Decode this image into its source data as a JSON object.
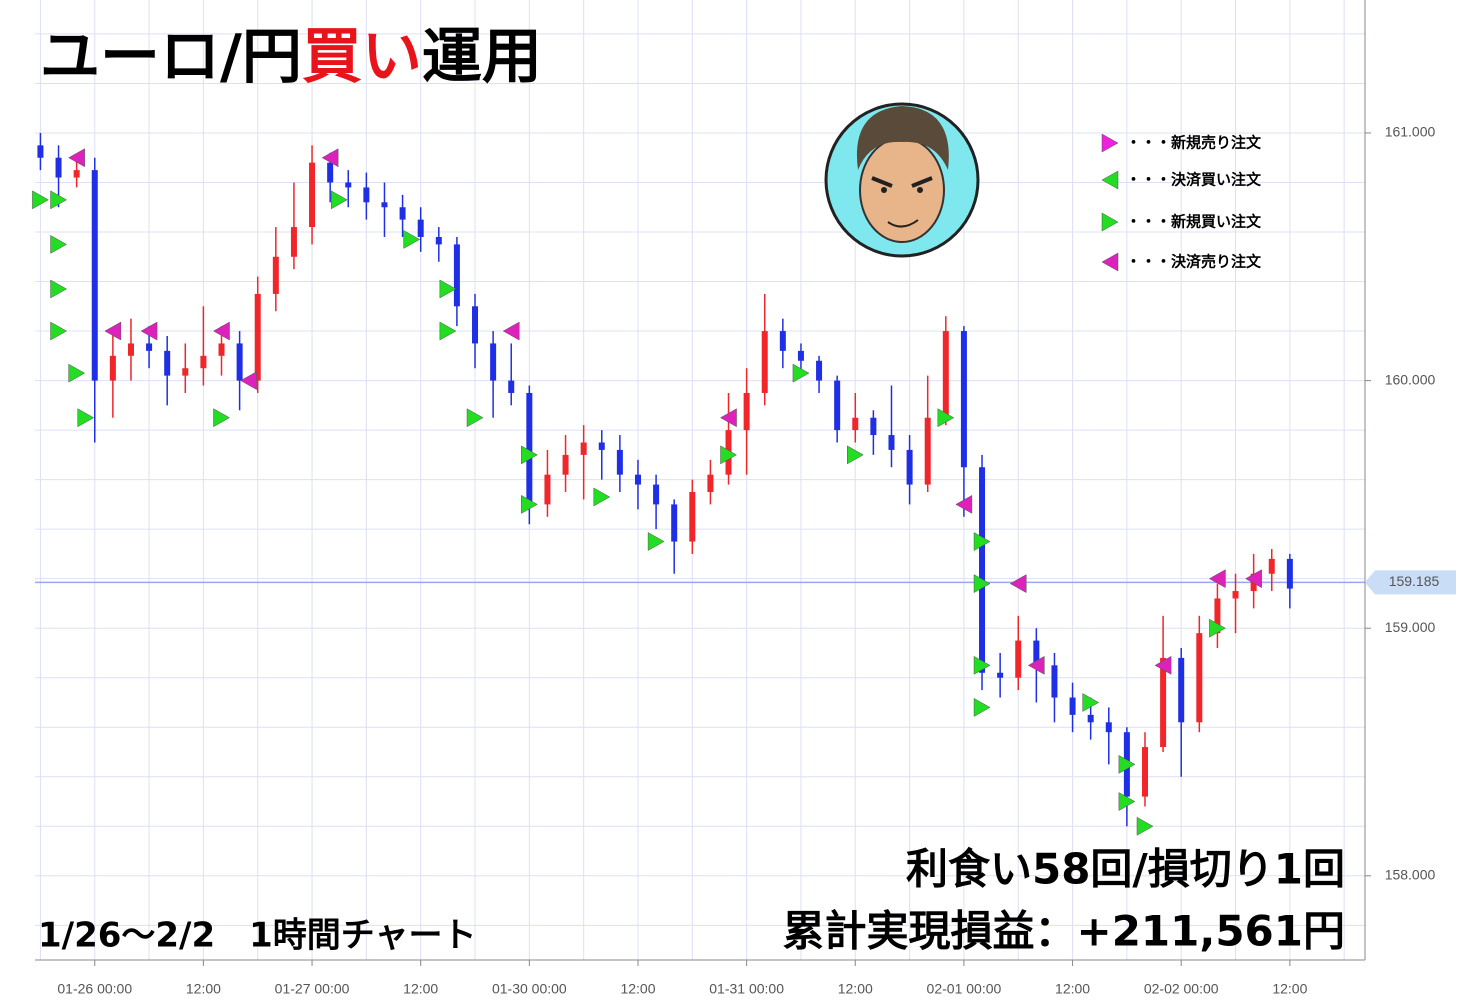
{
  "chart_data": {
    "type": "candlestick",
    "title": {
      "parts": [
        "ユーロ/円",
        "買い",
        "運用"
      ],
      "colors": [
        "#000000",
        "#e8141b",
        "#000000"
      ]
    },
    "period_label": "1/26〜2/2　1時間チャート",
    "summary": [
      "利食い58回/損切り1回",
      "累計実現損益：+211,561円"
    ],
    "up_color": "#f0262b",
    "down_color": "#1f2fe6",
    "x": [
      -6,
      -4,
      -2,
      0,
      2,
      4,
      6,
      8,
      10,
      12,
      14,
      16,
      18,
      20,
      22,
      24,
      26,
      28,
      30,
      32,
      34,
      36,
      38,
      40,
      42,
      44,
      46,
      48,
      50,
      52,
      54,
      56,
      58,
      60,
      62,
      64,
      66,
      68,
      70,
      72,
      74,
      76,
      78,
      80,
      82,
      84,
      86,
      88,
      90,
      92,
      94,
      96,
      98,
      100,
      102,
      104,
      106,
      108,
      110,
      112,
      114,
      116,
      118,
      120,
      122,
      124,
      126,
      128,
      130,
      132
    ],
    "open": [
      160.95,
      160.9,
      160.82,
      160.85,
      160.0,
      160.1,
      160.15,
      160.12,
      160.02,
      160.05,
      160.1,
      160.15,
      160.0,
      160.35,
      160.5,
      160.62,
      160.88,
      160.8,
      160.78,
      160.72,
      160.7,
      160.65,
      160.58,
      160.55,
      160.3,
      160.15,
      160.0,
      159.95,
      159.5,
      159.62,
      159.7,
      159.75,
      159.72,
      159.62,
      159.58,
      159.5,
      159.35,
      159.55,
      159.62,
      159.8,
      159.95,
      160.2,
      160.12,
      160.08,
      160.0,
      159.8,
      159.85,
      159.78,
      159.72,
      159.58,
      159.85,
      160.2,
      159.65,
      158.82,
      158.8,
      158.95,
      158.85,
      158.72,
      158.65,
      158.62,
      158.58,
      158.32,
      158.52,
      158.88,
      158.62,
      158.98,
      159.12,
      159.15,
      159.22,
      159.28
    ],
    "high": [
      161.0,
      160.95,
      160.9,
      160.9,
      160.2,
      160.25,
      160.22,
      160.18,
      160.15,
      160.3,
      160.22,
      160.2,
      160.42,
      160.62,
      160.8,
      160.95,
      160.92,
      160.85,
      160.84,
      160.8,
      160.75,
      160.7,
      160.62,
      160.58,
      160.35,
      160.2,
      160.15,
      159.98,
      159.72,
      159.78,
      159.82,
      159.8,
      159.78,
      159.68,
      159.62,
      159.52,
      159.6,
      159.68,
      159.95,
      160.05,
      160.35,
      160.25,
      160.15,
      160.1,
      160.02,
      159.95,
      159.88,
      159.98,
      159.78,
      160.02,
      160.26,
      160.22,
      159.7,
      158.9,
      159.05,
      159.0,
      158.9,
      158.78,
      158.72,
      158.68,
      158.6,
      158.58,
      159.05,
      158.92,
      159.05,
      159.18,
      159.22,
      159.3,
      159.32,
      159.3
    ],
    "low": [
      160.85,
      160.7,
      160.78,
      159.75,
      159.85,
      160.0,
      160.05,
      159.9,
      159.95,
      159.98,
      160.02,
      159.88,
      159.95,
      160.28,
      160.45,
      160.55,
      160.72,
      160.7,
      160.65,
      160.58,
      160.58,
      160.52,
      160.48,
      160.22,
      160.05,
      159.85,
      159.9,
      159.42,
      159.45,
      159.55,
      159.52,
      159.6,
      159.55,
      159.48,
      159.4,
      159.22,
      159.3,
      159.5,
      159.58,
      159.62,
      159.9,
      160.05,
      160.02,
      159.95,
      159.75,
      159.75,
      159.7,
      159.65,
      159.5,
      159.55,
      159.82,
      159.45,
      158.75,
      158.72,
      158.75,
      158.7,
      158.62,
      158.58,
      158.55,
      158.45,
      158.2,
      158.28,
      158.5,
      158.4,
      158.58,
      158.92,
      158.98,
      159.08,
      159.15,
      159.08
    ],
    "close": [
      160.9,
      160.82,
      160.85,
      160.0,
      160.1,
      160.15,
      160.12,
      160.02,
      160.05,
      160.1,
      160.15,
      160.0,
      160.35,
      160.5,
      160.62,
      160.88,
      160.8,
      160.78,
      160.72,
      160.7,
      160.65,
      160.58,
      160.55,
      160.3,
      160.15,
      160.0,
      159.95,
      159.5,
      159.62,
      159.7,
      159.75,
      159.72,
      159.62,
      159.58,
      159.5,
      159.35,
      159.55,
      159.62,
      159.8,
      159.95,
      160.2,
      160.12,
      160.08,
      160.0,
      159.8,
      159.85,
      159.78,
      159.72,
      159.58,
      159.85,
      160.2,
      159.65,
      158.82,
      158.8,
      158.95,
      158.85,
      158.72,
      158.65,
      158.62,
      158.58,
      158.32,
      158.52,
      158.88,
      158.62,
      158.98,
      159.12,
      159.15,
      159.22,
      159.28,
      159.16
    ],
    "legend": [
      {
        "label": "・・・新規売り注文",
        "color": "#ee22dd",
        "direction": "right"
      },
      {
        "label": "・・・決済買い注文",
        "color": "#22dd22",
        "direction": "left"
      },
      {
        "label": "・・・新規買い注文",
        "color": "#22dd22",
        "direction": "right"
      },
      {
        "label": "・・・決済売り注文",
        "color": "#dd22bb",
        "direction": "left"
      }
    ],
    "orders": [
      {
        "x": -6,
        "price": 160.73,
        "kind": 2
      },
      {
        "x": -4,
        "price": 160.73,
        "kind": 2
      },
      {
        "x": -4,
        "price": 160.55,
        "kind": 2
      },
      {
        "x": -4,
        "price": 160.37,
        "kind": 2
      },
      {
        "x": -4,
        "price": 160.2,
        "kind": 2
      },
      {
        "x": -2,
        "price": 160.03,
        "kind": 2
      },
      {
        "x": -1,
        "price": 159.85,
        "kind": 2
      },
      {
        "x": -2,
        "price": 160.9,
        "kind": 3
      },
      {
        "x": 2,
        "price": 160.2,
        "kind": 3
      },
      {
        "x": 6,
        "price": 160.2,
        "kind": 3
      },
      {
        "x": 14,
        "price": 160.2,
        "kind": 3
      },
      {
        "x": 14,
        "price": 159.85,
        "kind": 2
      },
      {
        "x": 17,
        "price": 160.0,
        "kind": 3
      },
      {
        "x": 26,
        "price": 160.9,
        "kind": 3
      },
      {
        "x": 27,
        "price": 160.73,
        "kind": 2
      },
      {
        "x": 35,
        "price": 160.57,
        "kind": 2
      },
      {
        "x": 39,
        "price": 160.37,
        "kind": 2
      },
      {
        "x": 39,
        "price": 160.2,
        "kind": 2
      },
      {
        "x": 46,
        "price": 160.2,
        "kind": 3
      },
      {
        "x": 42,
        "price": 159.85,
        "kind": 2
      },
      {
        "x": 48,
        "price": 159.7,
        "kind": 2
      },
      {
        "x": 48,
        "price": 159.5,
        "kind": 2
      },
      {
        "x": 56,
        "price": 159.53,
        "kind": 2
      },
      {
        "x": 62,
        "price": 159.35,
        "kind": 2
      },
      {
        "x": 70,
        "price": 159.7,
        "kind": 2
      },
      {
        "x": 70,
        "price": 159.85,
        "kind": 3
      },
      {
        "x": 78,
        "price": 160.03,
        "kind": 2
      },
      {
        "x": 84,
        "price": 159.7,
        "kind": 2
      },
      {
        "x": 94,
        "price": 159.85,
        "kind": 2
      },
      {
        "x": 96,
        "price": 159.5,
        "kind": 3
      },
      {
        "x": 98,
        "price": 159.35,
        "kind": 2
      },
      {
        "x": 98,
        "price": 159.18,
        "kind": 2
      },
      {
        "x": 102,
        "price": 159.18,
        "kind": 3
      },
      {
        "x": 98,
        "price": 158.85,
        "kind": 2
      },
      {
        "x": 104,
        "price": 158.85,
        "kind": 3
      },
      {
        "x": 110,
        "price": 158.7,
        "kind": 2
      },
      {
        "x": 114,
        "price": 158.45,
        "kind": 2
      },
      {
        "x": 116,
        "price": 158.2,
        "kind": 2
      },
      {
        "x": 114,
        "price": 158.3,
        "kind": 2
      },
      {
        "x": 118,
        "price": 158.85,
        "kind": 3
      },
      {
        "x": 124,
        "price": 159.2,
        "kind": 3
      },
      {
        "x": 128,
        "price": 159.2,
        "kind": 3
      },
      {
        "x": 124,
        "price": 159.0,
        "kind": 2
      },
      {
        "x": 98,
        "price": 158.68,
        "kind": 2
      }
    ],
    "last_price": {
      "value": 159.185,
      "label": "159.185"
    },
    "xlim": [
      -6.6,
      140.3
    ],
    "ylim": [
      157.66,
      161.537
    ],
    "xticks": [
      {
        "value": 0,
        "label": "01-26 00:00"
      },
      {
        "value": 12,
        "label": "12:00"
      },
      {
        "value": 24,
        "label": "01-27 00:00"
      },
      {
        "value": 36,
        "label": "12:00"
      },
      {
        "value": 48,
        "label": "01-30 00:00"
      },
      {
        "value": 60,
        "label": "12:00"
      },
      {
        "value": 72,
        "label": "01-31 00:00"
      },
      {
        "value": 84,
        "label": "12:00"
      },
      {
        "value": 96,
        "label": "02-01 00:00"
      },
      {
        "value": 108,
        "label": "12:00"
      },
      {
        "value": 120,
        "label": "02-02 00:00"
      },
      {
        "value": 132,
        "label": "12:00"
      }
    ],
    "x_minor_grid": [
      -6,
      6,
      18,
      30,
      42,
      54,
      66,
      78,
      90,
      102,
      114,
      126,
      138
    ],
    "yticks": [
      {
        "value": 158,
        "label": "158.000"
      },
      {
        "value": 159,
        "label": "159.000"
      },
      {
        "value": 160,
        "label": "160.000"
      },
      {
        "value": 161,
        "label": "161.000"
      }
    ],
    "y_minor_grid": [
      157.8,
      158.2,
      158.4,
      158.6,
      158.8,
      159.2,
      159.4,
      159.6,
      159.8,
      160.2,
      160.4,
      160.6,
      160.8,
      161.2,
      161.4
    ],
    "grid": true
  }
}
